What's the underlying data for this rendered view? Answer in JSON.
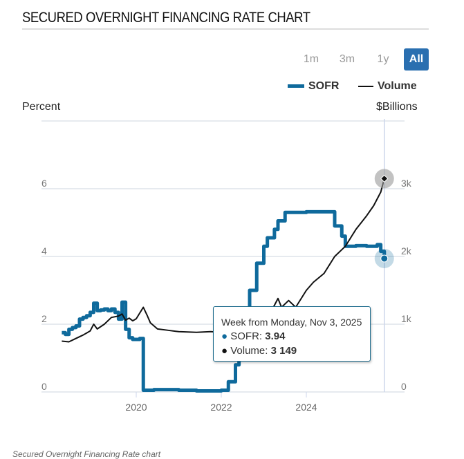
{
  "title": "SECURED OVERNIGHT FINANCING RATE CHART",
  "range_buttons": [
    {
      "label": "1m",
      "active": false
    },
    {
      "label": "3m",
      "active": false
    },
    {
      "label": "1y",
      "active": false
    },
    {
      "label": "All",
      "active": true
    }
  ],
  "tooltip": {
    "header": "Week from Monday, Nov 3, 2025",
    "sofr_label": "SOFR: ",
    "sofr_value": "3.94",
    "volume_label": "Volume: ",
    "volume_value": "3 149"
  },
  "caption": "Secured Overnight Financing Rate chart",
  "chart_data": {
    "type": "line",
    "title": "SECURED OVERNIGHT FINANCING RATE CHART",
    "ylabel_left": "Percent",
    "ylabel_right": "$Billions",
    "xlim": [
      "2018-04",
      "2025-11"
    ],
    "ylim_left": [
      0,
      8
    ],
    "ylim_right": [
      0,
      4000
    ],
    "x_ticks": [
      "2020",
      "2022",
      "2024"
    ],
    "y_ticks_left": [
      "0",
      "2",
      "4",
      "6"
    ],
    "y_ticks_right": [
      "0",
      "1k",
      "2k",
      "3k"
    ],
    "grid": true,
    "legend": "top-right",
    "colors": {
      "SOFR": "#0f6a9c",
      "Volume": "#111111"
    },
    "series": [
      {
        "name": "SOFR",
        "axis": "left",
        "step": true,
        "points": [
          [
            "2018-04",
            1.75
          ],
          [
            "2018-05",
            1.7
          ],
          [
            "2018-06",
            1.85
          ],
          [
            "2018-07",
            1.9
          ],
          [
            "2018-08",
            1.95
          ],
          [
            "2018-09",
            2.15
          ],
          [
            "2018-10",
            2.2
          ],
          [
            "2018-11",
            2.25
          ],
          [
            "2018-12",
            2.35
          ],
          [
            "2019-01",
            2.62
          ],
          [
            "2019-02",
            2.4
          ],
          [
            "2019-03",
            2.42
          ],
          [
            "2019-04",
            2.45
          ],
          [
            "2019-05",
            2.4
          ],
          [
            "2019-06",
            2.45
          ],
          [
            "2019-07",
            2.35
          ],
          [
            "2019-08",
            2.15
          ],
          [
            "2019-09",
            2.65
          ],
          [
            "2019-10",
            1.85
          ],
          [
            "2019-11",
            1.6
          ],
          [
            "2019-12",
            1.55
          ],
          [
            "2020-01",
            1.55
          ],
          [
            "2020-02",
            1.58
          ],
          [
            "2020-03",
            0.05
          ],
          [
            "2020-06",
            0.07
          ],
          [
            "2021-01",
            0.05
          ],
          [
            "2021-06",
            0.03
          ],
          [
            "2022-01",
            0.05
          ],
          [
            "2022-03",
            0.3
          ],
          [
            "2022-05",
            0.8
          ],
          [
            "2022-06",
            1.5
          ],
          [
            "2022-07",
            2.3
          ],
          [
            "2022-09",
            3.0
          ],
          [
            "2022-11",
            3.8
          ],
          [
            "2023-01",
            4.3
          ],
          [
            "2023-02",
            4.55
          ],
          [
            "2023-04",
            4.8
          ],
          [
            "2023-05",
            5.05
          ],
          [
            "2023-07",
            5.3
          ],
          [
            "2024-01",
            5.32
          ],
          [
            "2024-06",
            5.32
          ],
          [
            "2024-09",
            4.9
          ],
          [
            "2024-11",
            4.6
          ],
          [
            "2024-12",
            4.3
          ],
          [
            "2025-03",
            4.32
          ],
          [
            "2025-06",
            4.3
          ],
          [
            "2025-09",
            4.35
          ],
          [
            "2025-10",
            4.15
          ],
          [
            "2025-11",
            3.94
          ]
        ]
      },
      {
        "name": "Volume",
        "axis": "right",
        "step": false,
        "points": [
          [
            "2018-04",
            750
          ],
          [
            "2018-06",
            740
          ],
          [
            "2018-08",
            790
          ],
          [
            "2018-10",
            840
          ],
          [
            "2018-12",
            900
          ],
          [
            "2019-01",
            1000
          ],
          [
            "2019-02",
            930
          ],
          [
            "2019-04",
            1000
          ],
          [
            "2019-06",
            1100
          ],
          [
            "2019-08",
            1120
          ],
          [
            "2019-09",
            1150
          ],
          [
            "2019-10",
            1060
          ],
          [
            "2019-11",
            1090
          ],
          [
            "2019-12",
            1050
          ],
          [
            "2020-01",
            1080
          ],
          [
            "2020-03",
            1250
          ],
          [
            "2020-04",
            1140
          ],
          [
            "2020-05",
            1020
          ],
          [
            "2020-07",
            930
          ],
          [
            "2020-10",
            910
          ],
          [
            "2021-01",
            890
          ],
          [
            "2021-06",
            880
          ],
          [
            "2021-10",
            890
          ],
          [
            "2022-01",
            880
          ],
          [
            "2022-06",
            920
          ],
          [
            "2022-10",
            980
          ],
          [
            "2023-01",
            1050
          ],
          [
            "2023-03",
            1180
          ],
          [
            "2023-05",
            1380
          ],
          [
            "2023-06",
            1250
          ],
          [
            "2023-08",
            1350
          ],
          [
            "2023-10",
            1250
          ],
          [
            "2024-01",
            1500
          ],
          [
            "2024-03",
            1620
          ],
          [
            "2024-06",
            1750
          ],
          [
            "2024-09",
            2000
          ],
          [
            "2024-12",
            2150
          ],
          [
            "2025-03",
            2400
          ],
          [
            "2025-06",
            2600
          ],
          [
            "2025-08",
            2750
          ],
          [
            "2025-10",
            2950
          ],
          [
            "2025-11",
            3149
          ]
        ]
      }
    ]
  }
}
